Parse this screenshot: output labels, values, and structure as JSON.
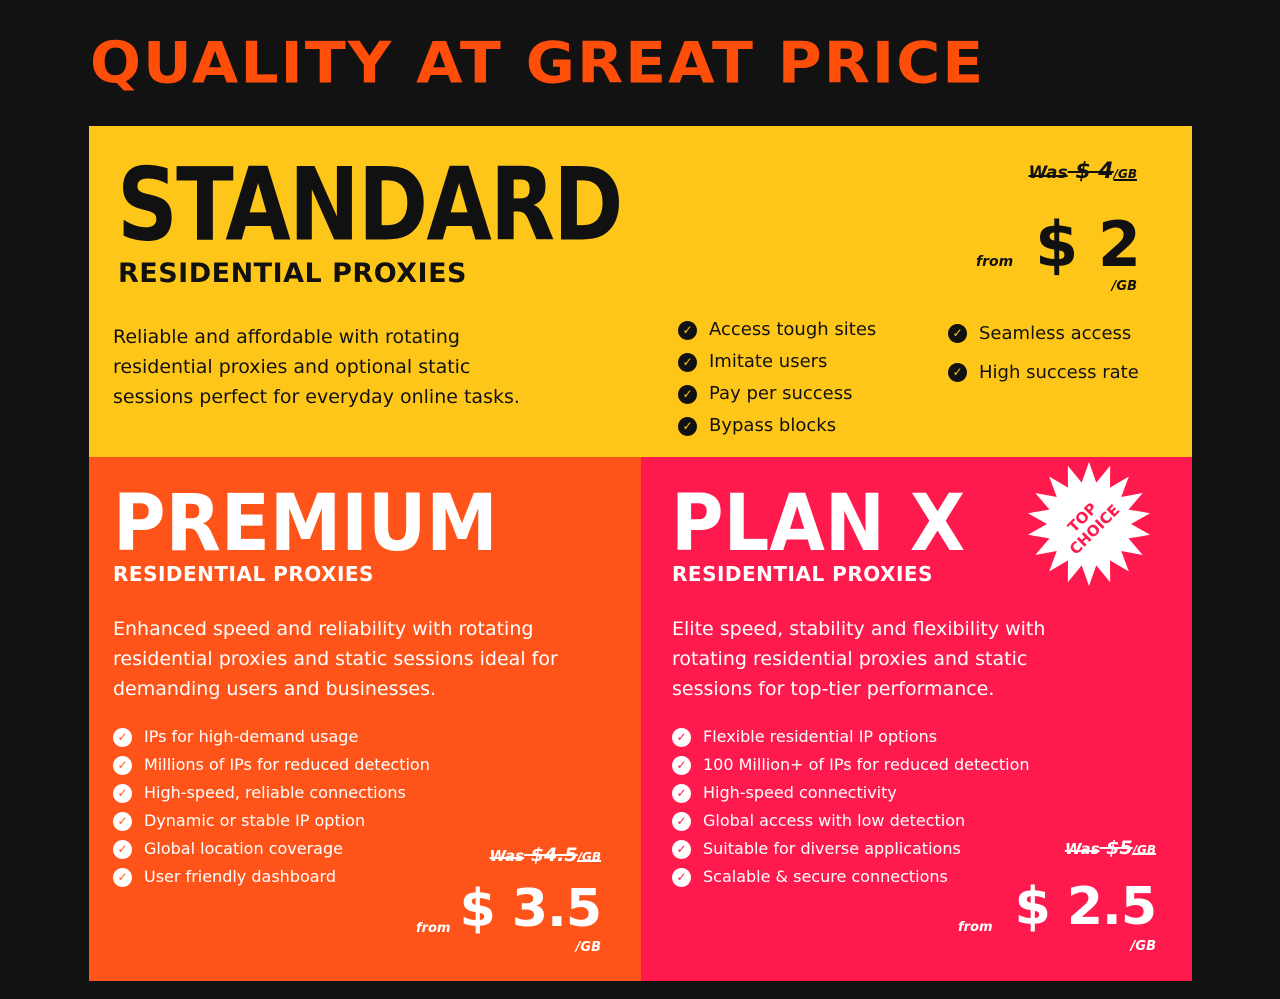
{
  "title": "QUALITY AT GREAT PRICE",
  "colors": {
    "background": "#121212",
    "title": "#ff4d0a",
    "standard": "#ffc61a",
    "premium": "#ff5419",
    "planx": "#ff1a4d"
  },
  "standard": {
    "name": "STANDARD",
    "subtitle": "RESIDENTIAL PROXIES",
    "description": "Reliable and affordable with rotating residential proxies and optional static sessions perfect for everyday online tasks.",
    "features_left": [
      "Access tough sites",
      "Imitate users",
      "Pay per success",
      "Bypass blocks"
    ],
    "features_right": [
      "Seamless access",
      "High success rate"
    ],
    "was_label": "Was",
    "was_price": "$ 4",
    "was_unit": "/GB",
    "from": "from",
    "price": "$ 2",
    "unit": "/GB"
  },
  "premium": {
    "name": "PREMIUM",
    "subtitle": "RESIDENTIAL PROXIES",
    "description": "Enhanced speed and reliability with rotating residential proxies and static sessions ideal for demanding users and businesses.",
    "features": [
      "IPs for high-demand usage",
      "Millions of IPs for reduced detection",
      "High-speed, reliable connections",
      "Dynamic or stable IP option",
      "Global location coverage",
      "User friendly dashboard"
    ],
    "was_label": "Was",
    "was_price": "$4.5",
    "was_unit": "/GB",
    "from": "from",
    "price": "$ 3.5",
    "unit": "/GB"
  },
  "planx": {
    "name": "PLAN X",
    "subtitle": "RESIDENTIAL PROXIES",
    "badge_line1": "TOP",
    "badge_line2": "CHOICE",
    "description": "Elite speed, stability and flexibility with rotating residential proxies and static sessions for top-tier performance.",
    "features": [
      "Flexible residential IP options",
      "100 Million+ of IPs for reduced detection",
      "High-speed connectivity",
      "Global access with low detection",
      "Suitable for diverse applications",
      "Scalable & secure connections"
    ],
    "was_label": "Was",
    "was_price": "$5",
    "was_unit": "/GB",
    "from": "from",
    "price": "$ 2.5",
    "unit": "/GB"
  }
}
